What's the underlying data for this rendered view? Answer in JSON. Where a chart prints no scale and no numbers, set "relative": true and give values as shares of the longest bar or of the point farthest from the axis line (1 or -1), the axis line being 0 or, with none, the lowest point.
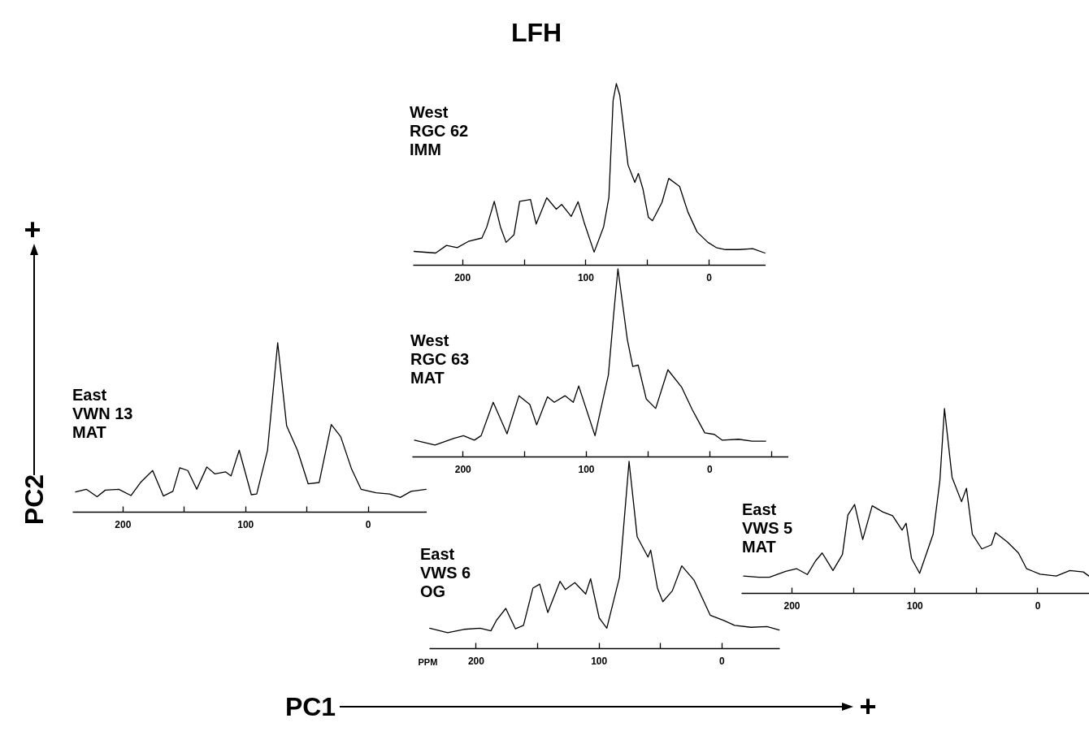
{
  "chart_data": [
    {
      "type": "other",
      "title": "LFH",
      "annotations": [
        "PC1",
        "+",
        "PC2",
        "+"
      ]
    },
    {
      "type": "line",
      "relative": true,
      "annotations": [
        "West",
        "RGC 62",
        "IMM"
      ],
      "xlim": [
        240,
        -46
      ],
      "xticks": [
        200,
        {
          "value": 150,
          "label": null
        },
        100,
        {
          "value": 50,
          "label": null
        },
        0
      ],
      "x": [
        239,
        221.5,
        212.7,
        204,
        195,
        184,
        180,
        174,
        169,
        164.4,
        158,
        153.4,
        144.6,
        140,
        131.4,
        123.7,
        119.3,
        111.6,
        106,
        100.7,
        93,
        85.3,
        81,
        77.6,
        75,
        72.2,
        65.5,
        60,
        57.1,
        53.4,
        49,
        45.7,
        38,
        32.5,
        23.7,
        17,
        9.5,
        0.7,
        -6,
        -13.6,
        -24.6,
        -35.6,
        -45.5
      ],
      "series": [
        {
          "color": "#000000",
          "values": [
            0.074,
            0.065,
            0.107,
            0.095,
            0.129,
            0.148,
            0.21,
            0.35,
            0.21,
            0.124,
            0.166,
            0.35,
            0.36,
            0.225,
            0.37,
            0.307,
            0.333,
            0.267,
            0.348,
            0.225,
            0.07,
            0.21,
            0.373,
            0.907,
            1.0,
            0.936,
            0.551,
            0.455,
            0.504,
            0.418,
            0.262,
            0.243,
            0.344,
            0.477,
            0.433,
            0.292,
            0.181,
            0.124,
            0.095,
            0.084,
            0.084,
            0.089,
            0.065
          ]
        }
      ]
    },
    {
      "type": "line",
      "relative": true,
      "annotations": [
        "East",
        "VWN 13",
        "MAT"
      ],
      "xlim": [
        241,
        -48
      ],
      "xticks": [
        200,
        {
          "value": 150,
          "label": null
        },
        100,
        {
          "value": 50,
          "label": null
        },
        0
      ],
      "x": [
        238.4,
        229.6,
        220.8,
        214.1,
        203.1,
        193.2,
        185.4,
        175.5,
        166.7,
        159,
        153.4,
        146.8,
        139.5,
        131.3,
        124.7,
        115.9,
        111.5,
        104.9,
        95,
        90.6,
        81.8,
        73.5,
        66.2,
        57.4,
        48.6,
        39.7,
        29.8,
        22.1,
        13.2,
        5.5,
        -6.6,
        -17.7,
        -26.5,
        -35.3,
        -47.5
      ],
      "series": [
        {
          "color": "#000000",
          "values": [
            0.117,
            0.133,
            0.089,
            0.128,
            0.133,
            0.096,
            0.173,
            0.244,
            0.093,
            0.121,
            0.26,
            0.244,
            0.133,
            0.265,
            0.224,
            0.236,
            0.212,
            0.364,
            0.101,
            0.105,
            0.364,
            1.0,
            0.508,
            0.364,
            0.165,
            0.173,
            0.516,
            0.444,
            0.252,
            0.133,
            0.112,
            0.105,
            0.085,
            0.121,
            0.133
          ]
        }
      ]
    },
    {
      "type": "line",
      "relative": true,
      "annotations": [
        "West",
        "RGC 63",
        "MAT"
      ],
      "xlim": [
        241,
        -64
      ],
      "xticks": [
        200,
        {
          "value": 150,
          "label": null
        },
        100,
        {
          "value": 50,
          "label": null
        },
        0,
        {
          "value": -50,
          "label": null
        }
      ],
      "x": [
        239,
        222.4,
        207,
        199.3,
        190.5,
        185,
        175.2,
        164,
        154.3,
        145.5,
        140,
        131.2,
        125.7,
        116.9,
        110.3,
        105.9,
        92.7,
        81.8,
        77.4,
        74.1,
        66.5,
        62.1,
        57.7,
        51.1,
        43.5,
        33.6,
        22.6,
        13.8,
        3.7,
        -4,
        -10.5,
        -23.7,
        -34.7,
        -45.7
      ],
      "series": [
        {
          "color": "#000000",
          "values": [
            0.087,
            0.061,
            0.097,
            0.111,
            0.087,
            0.111,
            0.289,
            0.121,
            0.324,
            0.277,
            0.169,
            0.318,
            0.289,
            0.324,
            0.289,
            0.376,
            0.111,
            0.436,
            0.769,
            1.0,
            0.624,
            0.48,
            0.487,
            0.306,
            0.256,
            0.462,
            0.371,
            0.249,
            0.126,
            0.118,
            0.087,
            0.092,
            0.082,
            0.082
          ]
        }
      ]
    },
    {
      "type": "line",
      "relative": true,
      "annotations": [
        "East",
        "VWS 5",
        "MAT"
      ],
      "xlim": [
        241,
        -42
      ],
      "xticks": [
        200,
        {
          "value": 150,
          "label": null
        },
        100,
        {
          "value": 50,
          "label": null
        },
        0
      ],
      "x": [
        239,
        226.9,
        218,
        204.8,
        196,
        187.2,
        180.6,
        175.1,
        166.3,
        158.6,
        154.2,
        148.7,
        142.1,
        134.4,
        125.6,
        117.8,
        110.1,
        106.8,
        102.4,
        95.8,
        84.8,
        79.3,
        75.6,
        69.4,
        61.7,
        57.7,
        52.9,
        45.2,
        37.4,
        34.1,
        24.2,
        15.4,
        8.8,
        -2.2,
        -15.4,
        -26.4,
        -37.4,
        -41.9
      ],
      "series": [
        {
          "color": "#000000",
          "values": [
            0.092,
            0.085,
            0.085,
            0.117,
            0.132,
            0.1,
            0.173,
            0.217,
            0.122,
            0.209,
            0.422,
            0.48,
            0.29,
            0.473,
            0.439,
            0.419,
            0.341,
            0.378,
            0.187,
            0.107,
            0.319,
            0.612,
            1.0,
            0.627,
            0.495,
            0.568,
            0.319,
            0.239,
            0.261,
            0.327,
            0.275,
            0.217,
            0.132,
            0.102,
            0.092,
            0.122,
            0.114,
            0.092
          ]
        }
      ]
    },
    {
      "type": "line",
      "relative": true,
      "xlabel": "PPM",
      "annotations": [
        "East",
        "VWS 6",
        "OG"
      ],
      "xlim": [
        238,
        -47
      ],
      "xticks": [
        200,
        {
          "value": 150,
          "label": null
        },
        100,
        {
          "value": 50,
          "label": null
        },
        0
      ],
      "x": [
        237.5,
        222.9,
        209.7,
        196.5,
        187.7,
        183.3,
        175.6,
        167.8,
        161.2,
        153.5,
        148,
        141.4,
        131.5,
        127.1,
        119.4,
        110.6,
        106.6,
        99.6,
        93.4,
        83.1,
        75.3,
        68.7,
        59.9,
        57.7,
        52.2,
        47.8,
        40.1,
        32.4,
        22.5,
        9.3,
        -1.8,
        -10.6,
        -23.8,
        -37,
        -46.9
      ],
      "series": [
        {
          "color": "#000000",
          "values": [
            0.107,
            0.083,
            0.101,
            0.107,
            0.093,
            0.148,
            0.213,
            0.104,
            0.122,
            0.322,
            0.343,
            0.191,
            0.358,
            0.314,
            0.351,
            0.29,
            0.372,
            0.162,
            0.107,
            0.38,
            1.0,
            0.597,
            0.488,
            0.525,
            0.322,
            0.249,
            0.307,
            0.441,
            0.365,
            0.177,
            0.148,
            0.122,
            0.112,
            0.116,
            0.097
          ]
        }
      ]
    }
  ]
}
